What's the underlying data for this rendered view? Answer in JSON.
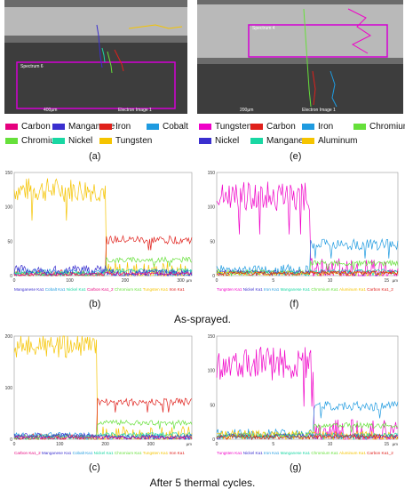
{
  "panels_top": {
    "a": {
      "letter": "(a)",
      "spectrum_label": "Spectrum 6",
      "scale_text": "400µm",
      "image_caption": "Electron Image 1",
      "legend": [
        {
          "name": "Carbon",
          "color": "#e6007e"
        },
        {
          "name": "Manganese",
          "color": "#3a2fcf"
        },
        {
          "name": "Iron",
          "color": "#e0201b"
        },
        {
          "name": "Cobalt",
          "color": "#1f9be0"
        },
        {
          "name": "Chromium",
          "color": "#66e03a"
        },
        {
          "name": "Nickel",
          "color": "#19d7a3"
        },
        {
          "name": "Tungsten",
          "color": "#f5c400"
        }
      ]
    },
    "e": {
      "letter": "(e)",
      "spectrum_label": "Spectrum 4",
      "scale_text": "200µm",
      "image_caption": "Electron Image 1",
      "legend": [
        {
          "name": "Tungsten",
          "color": "#f000c8"
        },
        {
          "name": "Carbon",
          "color": "#e0201b"
        },
        {
          "name": "Iron",
          "color": "#1f9be0"
        },
        {
          "name": "Chromium",
          "color": "#66e03a"
        },
        {
          "name": "Nickel",
          "color": "#3a2fcf"
        },
        {
          "name": "Manganese",
          "color": "#19d7a3"
        },
        {
          "name": "Aluminum",
          "color": "#f5c400"
        }
      ]
    }
  },
  "captions": {
    "as_sprayed": "As-sprayed.",
    "after_cycles": "After 5 thermal cycles."
  },
  "chart_data": [
    {
      "id": "b",
      "letter": "(b)",
      "type": "line",
      "ylim": [
        0,
        150
      ],
      "xlim": [
        0,
        320
      ],
      "yticks": [
        0,
        50,
        100,
        150
      ],
      "xticks": [
        0,
        100,
        200,
        300
      ],
      "x_unit": "µm",
      "step_x": 165,
      "legend_text": "Manganese Ka1 Cobalt Ka1 Nickel Ka1 Carbon Ka1_2 Chromium Ka1 Tungsten Ka1 Iron Ka1",
      "legend_colors": [
        "#3a2fcf",
        "#1f9be0",
        "#19d7a3",
        "#e6007e",
        "#66e03a",
        "#f5c400",
        "#e0201b"
      ],
      "series": [
        {
          "name": "Tungsten Ka1",
          "color": "#f5c400",
          "before": 125,
          "after": 3,
          "noise": 18
        },
        {
          "name": "Iron Ka1",
          "color": "#e0201b",
          "before": 2,
          "after": 52,
          "noise": 6
        },
        {
          "name": "Chromium Ka1",
          "color": "#66e03a",
          "before": 3,
          "after": 23,
          "noise": 4
        },
        {
          "name": "Cobalt Ka1",
          "color": "#1f9be0",
          "before": 6,
          "after": 4,
          "noise": 4
        },
        {
          "name": "Nickel Ka1",
          "color": "#19d7a3",
          "before": 3,
          "after": 7,
          "noise": 3
        },
        {
          "name": "Manganese Ka1",
          "color": "#3a2fcf",
          "before": 8,
          "after": 3,
          "noise": 7
        },
        {
          "name": "Carbon Ka1_2",
          "color": "#e6007e",
          "before": 2,
          "after": 3,
          "noise": 2
        }
      ]
    },
    {
      "id": "f",
      "letter": "(f)",
      "type": "line",
      "ylim": [
        0,
        150
      ],
      "xlim": [
        0,
        16
      ],
      "yticks": [
        0,
        50,
        100,
        150
      ],
      "xticks": [
        0,
        5,
        10,
        15
      ],
      "x_unit": "µm",
      "step_x": 8.3,
      "legend_text": "Tungsten Ka1 Nickel Ka1 Iron Ka1 Manganese Ka1 Chromium Ka1 Aluminum Ka1 Carbon Ka1_2",
      "legend_colors": [
        "#f000c8",
        "#3a2fcf",
        "#1f9be0",
        "#19d7a3",
        "#66e03a",
        "#f5c400",
        "#e0201b"
      ],
      "series": [
        {
          "name": "Tungsten Ka1",
          "color": "#f000c8",
          "before": 115,
          "after": 4,
          "noise": 22
        },
        {
          "name": "Iron Ka1",
          "color": "#1f9be0",
          "before": 8,
          "after": 45,
          "noise": 8
        },
        {
          "name": "Chromium Ka1",
          "color": "#66e03a",
          "before": 5,
          "after": 18,
          "noise": 4
        },
        {
          "name": "Nickel Ka1",
          "color": "#3a2fcf",
          "before": 5,
          "after": 5,
          "noise": 3
        },
        {
          "name": "Manganese Ka1",
          "color": "#19d7a3",
          "before": 4,
          "after": 6,
          "noise": 3
        },
        {
          "name": "Aluminum Ka1",
          "color": "#f5c400",
          "before": 3,
          "after": 3,
          "noise": 3
        },
        {
          "name": "Carbon Ka1_2",
          "color": "#e0201b",
          "before": 3,
          "after": 4,
          "noise": 3
        }
      ]
    },
    {
      "id": "c",
      "letter": "(c)",
      "type": "line",
      "ylim": [
        0,
        200
      ],
      "xlim": [
        0,
        390
      ],
      "yticks": [
        0,
        100,
        200
      ],
      "xticks": [
        0,
        100,
        200,
        300
      ],
      "x_unit": "µm",
      "step_x": 182,
      "legend_text": "Carbon Ka1_2 Manganese Ka1 Cobalt Ka1 Nickel Ka1 Chromium Ka1 Tungsten Ka1 Iron Ka1",
      "legend_colors": [
        "#e6007e",
        "#3a2fcf",
        "#1f9be0",
        "#19d7a3",
        "#66e03a",
        "#f5c400",
        "#e0201b"
      ],
      "series": [
        {
          "name": "Tungsten Ka1",
          "color": "#f5c400",
          "before": 180,
          "after": 3,
          "noise": 22
        },
        {
          "name": "Iron Ka1",
          "color": "#e0201b",
          "before": 3,
          "after": 72,
          "noise": 8
        },
        {
          "name": "Chromium Ka1",
          "color": "#66e03a",
          "before": 4,
          "after": 32,
          "noise": 5
        },
        {
          "name": "Cobalt Ka1",
          "color": "#1f9be0",
          "before": 8,
          "after": 5,
          "noise": 5
        },
        {
          "name": "Nickel Ka1",
          "color": "#19d7a3",
          "before": 4,
          "after": 9,
          "noise": 4
        },
        {
          "name": "Manganese Ka1",
          "color": "#3a2fcf",
          "before": 7,
          "after": 4,
          "noise": 5
        },
        {
          "name": "Carbon Ka1_2",
          "color": "#e6007e",
          "before": 3,
          "after": 3,
          "noise": 3
        }
      ]
    },
    {
      "id": "g",
      "letter": "(g)",
      "type": "line",
      "ylim": [
        0,
        150
      ],
      "xlim": [
        0,
        16
      ],
      "yticks": [
        0,
        50,
        100,
        150
      ],
      "xticks": [
        0,
        5,
        10,
        15
      ],
      "x_unit": "µm",
      "step_x": 8.6,
      "legend_text": "Tungsten Ka1 Nickel Ka1 Iron Ka1 Manganese Ka1 Chromium Ka1 Aluminum Ka1 Carbon Ka1_2",
      "legend_colors": [
        "#f000c8",
        "#3a2fcf",
        "#1f9be0",
        "#19d7a3",
        "#66e03a",
        "#f5c400",
        "#e0201b"
      ],
      "series": [
        {
          "name": "Tungsten Ka1",
          "color": "#f000c8",
          "before": 110,
          "after": 4,
          "noise": 25
        },
        {
          "name": "Iron Ka1",
          "color": "#1f9be0",
          "before": 8,
          "after": 48,
          "noise": 7
        },
        {
          "name": "Chromium Ka1",
          "color": "#66e03a",
          "before": 6,
          "after": 20,
          "noise": 4
        },
        {
          "name": "Aluminum Ka1",
          "color": "#f5c400",
          "before": 6,
          "after": 5,
          "noise": 7
        },
        {
          "name": "Nickel Ka1",
          "color": "#3a2fcf",
          "before": 5,
          "after": 4,
          "noise": 3
        },
        {
          "name": "Manganese Ka1",
          "color": "#19d7a3",
          "before": 4,
          "after": 6,
          "noise": 3
        },
        {
          "name": "Carbon Ka1_2",
          "color": "#e0201b",
          "before": 3,
          "after": 4,
          "noise": 3
        }
      ]
    }
  ]
}
